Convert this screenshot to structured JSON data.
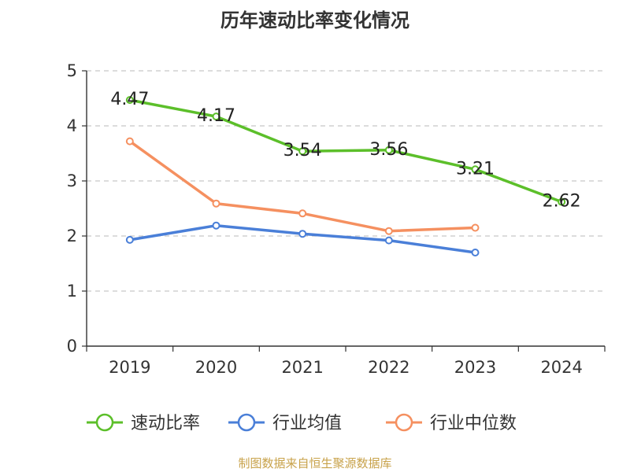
{
  "chart_data": {
    "type": "line",
    "title": "历年速动比率变化情况",
    "categories": [
      "2019",
      "2020",
      "2021",
      "2022",
      "2023",
      "2024"
    ],
    "ylim": [
      0,
      5
    ],
    "yticks": [
      "0",
      "1",
      "2",
      "3",
      "4",
      "5"
    ],
    "grid": true,
    "legend_position": "bottom",
    "series": [
      {
        "name": "速动比率",
        "color": "#5cbf2a",
        "values": [
          4.47,
          4.17,
          3.54,
          3.56,
          3.21,
          2.62
        ],
        "labels": [
          "4.47",
          "4.17",
          "3.54",
          "3.56",
          "3.21",
          "2.62"
        ]
      },
      {
        "name": "行业均值",
        "color": "#4a7fd8",
        "values": [
          1.93,
          2.19,
          2.04,
          1.92,
          1.7,
          null
        ]
      },
      {
        "name": "行业中位数",
        "color": "#f59060",
        "values": [
          3.72,
          2.59,
          2.41,
          2.09,
          2.15,
          null
        ]
      }
    ],
    "source": "制图数据来自恒生聚源数据库"
  }
}
